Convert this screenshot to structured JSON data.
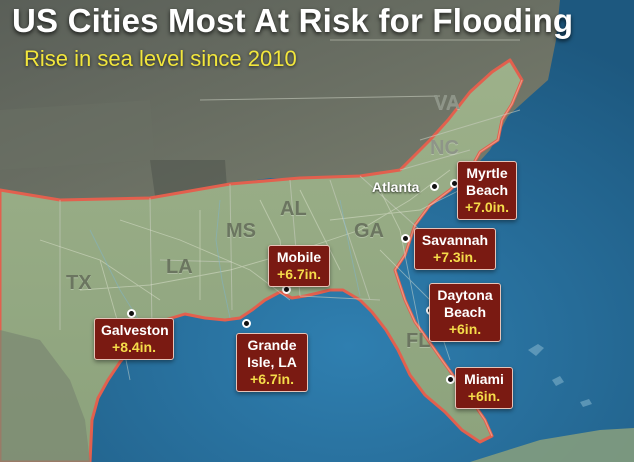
{
  "title": "US Cities Most At Risk for Flooding",
  "subtitle": "Rise in sea level since 2010",
  "colors": {
    "ocean": "#2f78a6",
    "land": "#93a882",
    "inland": "#6f7768",
    "callout_bg": "#7a1a12",
    "callout_value": "#f5dc4a",
    "coast_glow": "#e2604e"
  },
  "states": [
    {
      "id": "va",
      "label": "VA"
    },
    {
      "id": "nc",
      "label": "NC"
    },
    {
      "id": "al",
      "label": "AL"
    },
    {
      "id": "ms",
      "label": "MS"
    },
    {
      "id": "ga",
      "label": "GA"
    },
    {
      "id": "tx",
      "label": "TX"
    },
    {
      "id": "la",
      "label": "LA"
    },
    {
      "id": "fl",
      "label": "FL"
    }
  ],
  "reference_city": {
    "name": "Atlanta"
  },
  "cities": [
    {
      "id": "myrtle-beach",
      "name_lines": [
        "Myrtle",
        "Beach"
      ],
      "rise": "+7.0in."
    },
    {
      "id": "savannah",
      "name_lines": [
        "Savannah"
      ],
      "rise": "+7.3in."
    },
    {
      "id": "mobile",
      "name_lines": [
        "Mobile"
      ],
      "rise": "+6.7in."
    },
    {
      "id": "daytona-beach",
      "name_lines": [
        "Daytona",
        "Beach"
      ],
      "rise": "+6in."
    },
    {
      "id": "galveston",
      "name_lines": [
        "Galveston"
      ],
      "rise": "+8.4in."
    },
    {
      "id": "grande-isle",
      "name_lines": [
        "Grande",
        "Isle, LA"
      ],
      "rise": "+6.7in."
    },
    {
      "id": "miami",
      "name_lines": [
        "Miami"
      ],
      "rise": "+6in."
    }
  ]
}
